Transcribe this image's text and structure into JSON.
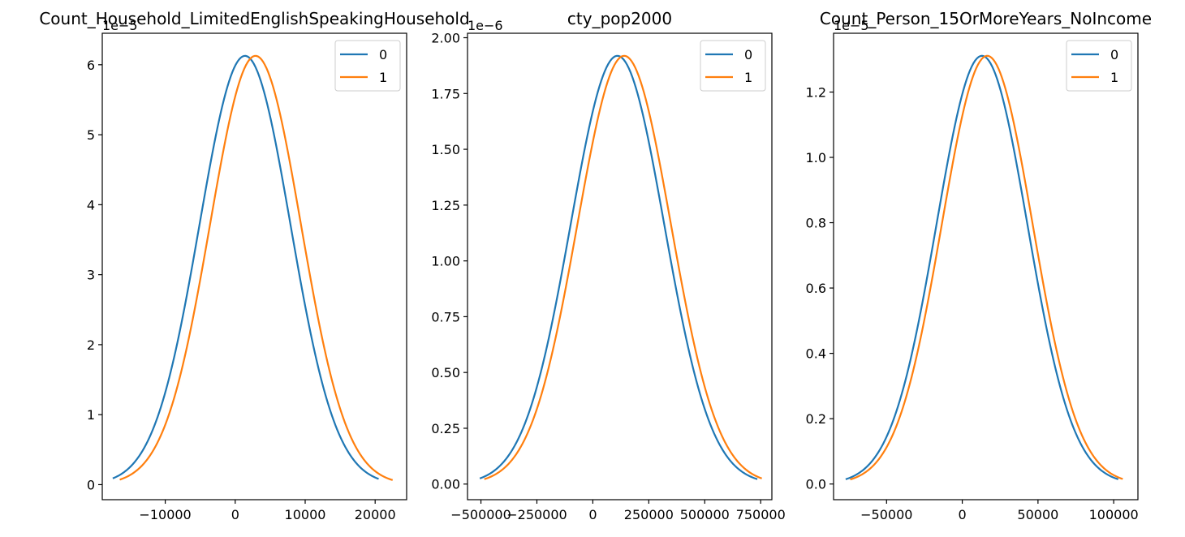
{
  "chart_data": [
    {
      "type": "line",
      "title": "Count_Household_LimitedEnglishSpeakingHousehold",
      "offset_text": "1e−5",
      "xlim": [
        -19000,
        24500
      ],
      "ylim": [
        -0.215,
        6.45
      ],
      "xticks": [
        -10000,
        0,
        10000,
        20000
      ],
      "xtick_labels": [
        "−10000",
        "0",
        "10000",
        "20000"
      ],
      "yticks": [
        0,
        1,
        2,
        3,
        4,
        5,
        6
      ],
      "ytick_labels": [
        "0",
        "1",
        "2",
        "3",
        "4",
        "5",
        "6"
      ],
      "legend_position": "upper right",
      "series": [
        {
          "name": "0",
          "color": "#1f77b4",
          "mean": 1400,
          "sd": 6500,
          "x_range": [
            -17500,
            20500
          ]
        },
        {
          "name": "1",
          "color": "#ff7f0e",
          "mean": 2900,
          "sd": 6500,
          "x_range": [
            -16500,
            22500
          ]
        }
      ]
    },
    {
      "type": "line",
      "title": "cty_pop2000",
      "offset_text": "1e−6",
      "xlim": [
        -560000,
        800000
      ],
      "ylim": [
        -0.07,
        2.02
      ],
      "xticks": [
        -500000,
        -250000,
        0,
        250000,
        500000,
        750000
      ],
      "xtick_labels": [
        "−500000",
        "−250000",
        "0",
        "250000",
        "500000",
        "750000"
      ],
      "yticks": [
        0,
        0.25,
        0.5,
        0.75,
        1.0,
        1.25,
        1.5,
        1.75,
        2.0
      ],
      "ytick_labels": [
        "0.00",
        "0.25",
        "0.50",
        "0.75",
        "1.00",
        "1.25",
        "1.50",
        "1.75",
        "2.00"
      ],
      "legend_position": "upper right",
      "series": [
        {
          "name": "0",
          "color": "#1f77b4",
          "mean": 110000,
          "sd": 209000,
          "x_range": [
            -505000,
            735000
          ]
        },
        {
          "name": "1",
          "color": "#ff7f0e",
          "mean": 140000,
          "sd": 209000,
          "x_range": [
            -485000,
            755000
          ]
        }
      ]
    },
    {
      "type": "line",
      "title": "Count_Person_15OrMoreYears_NoIncome",
      "offset_text": "1e−5",
      "xlim": [
        -85000,
        116000
      ],
      "ylim": [
        -0.048,
        1.38
      ],
      "xticks": [
        -50000,
        0,
        50000,
        100000
      ],
      "xtick_labels": [
        "−50000",
        "0",
        "50000",
        "100000"
      ],
      "yticks": [
        0,
        0.2,
        0.4,
        0.6,
        0.8,
        1.0,
        1.2
      ],
      "ytick_labels": [
        "0.0",
        "0.2",
        "0.4",
        "0.6",
        "0.8",
        "1.0",
        "1.2"
      ],
      "legend_position": "upper right",
      "series": [
        {
          "name": "0",
          "color": "#1f77b4",
          "mean": 13000,
          "sd": 30000,
          "x_range": [
            -77000,
            103000
          ]
        },
        {
          "name": "1",
          "color": "#ff7f0e",
          "mean": 16500,
          "sd": 30000,
          "x_range": [
            -74000,
            106000
          ]
        }
      ]
    }
  ]
}
